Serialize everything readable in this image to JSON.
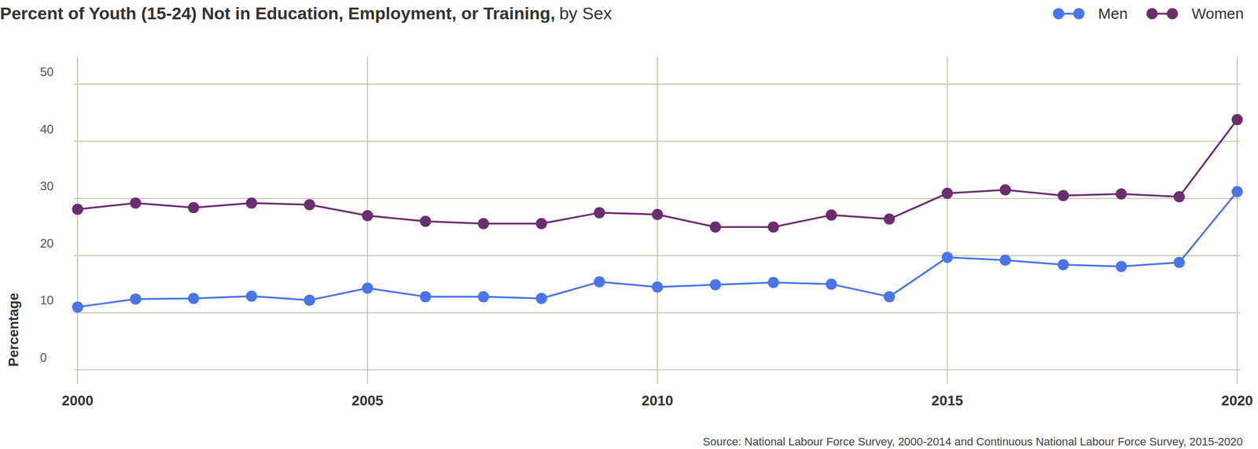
{
  "chart_data": {
    "type": "line",
    "title": "Percent of Youth (15-24) Not in Education, Employment, or Training,",
    "subtitle": "by Sex",
    "y_label": "Percentage",
    "source": "Source: National Labour Force Survey, 2000-2014 and Continuous National Labour Force Survey, 2015-2020",
    "x": [
      2000,
      2001,
      2002,
      2003,
      2004,
      2005,
      2006,
      2007,
      2008,
      2009,
      2010,
      2011,
      2012,
      2013,
      2014,
      2015,
      2016,
      2017,
      2018,
      2019,
      2020
    ],
    "series": [
      {
        "name": "Men",
        "color": "#4a74ea",
        "marker": "circle",
        "values": [
          11.0,
          12.4,
          12.5,
          12.9,
          12.2,
          14.3,
          12.8,
          12.8,
          12.5,
          15.4,
          14.5,
          14.9,
          15.3,
          15.0,
          12.8,
          19.7,
          19.2,
          18.4,
          18.1,
          18.8,
          31.2
        ]
      },
      {
        "name": "Women",
        "color": "#6b2d6e",
        "marker": "circle",
        "values": [
          28.1,
          29.2,
          28.4,
          29.2,
          28.9,
          27.0,
          26.0,
          25.6,
          25.6,
          27.5,
          27.2,
          25.0,
          25.0,
          27.1,
          26.4,
          30.9,
          31.5,
          30.5,
          30.8,
          30.3,
          43.8
        ]
      }
    ],
    "xlim": [
      2000,
      2020
    ],
    "xticks": [
      2000,
      2005,
      2010,
      2015,
      2020
    ],
    "ylim": [
      0,
      50
    ],
    "yticks": [
      0,
      10,
      20,
      30,
      40,
      50
    ],
    "grid": true,
    "legend": "top-right"
  }
}
